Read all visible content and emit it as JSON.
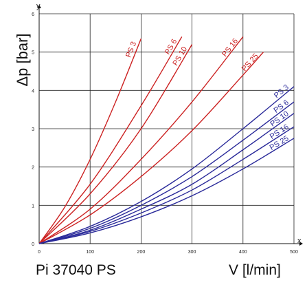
{
  "chart_data": {
    "type": "line",
    "ylabel": "Δp [bar]",
    "xlabel": "V [l/min]",
    "x_axis_letter": "x",
    "y_axis_letter": "y",
    "caption": "Pi 37040 PS",
    "xlim": [
      0,
      500
    ],
    "ylim": [
      0,
      6
    ],
    "x_ticks": [
      "0",
      "100",
      "200",
      "300",
      "400",
      "500"
    ],
    "y_ticks": [
      "0",
      "1",
      "2",
      "3",
      "4",
      "5",
      "6"
    ],
    "grid": true,
    "series_groups": [
      {
        "color": "#cc2222",
        "series": [
          {
            "name": "PS 3",
            "x": [
              0,
              50,
              100,
              150,
              200
            ],
            "y": [
              0,
              0.95,
              2.2,
              3.7,
              5.35
            ]
          },
          {
            "name": "PS 6",
            "x": [
              0,
              100,
              200,
              280
            ],
            "y": [
              0,
              1.55,
              3.6,
              5.4
            ]
          },
          {
            "name": "PS 10",
            "x": [
              0,
              100,
              200,
              300
            ],
            "y": [
              0,
              1.3,
              3.0,
              5.2
            ]
          },
          {
            "name": "PS 16",
            "x": [
              0,
              100,
              200,
              300,
              400
            ],
            "y": [
              0,
              0.9,
              2.2,
              3.7,
              5.4
            ]
          },
          {
            "name": "PS 25",
            "x": [
              0,
              100,
              200,
              300,
              400,
              440
            ],
            "y": [
              0,
              0.75,
              1.75,
              2.95,
              4.4,
              5.0
            ]
          }
        ]
      },
      {
        "color": "#2a2a9a",
        "series": [
          {
            "name": "PS 3",
            "x": [
              0,
              100,
              200,
              300,
              400,
              500
            ],
            "y": [
              0,
              0.45,
              1.1,
              1.95,
              3.0,
              4.1
            ]
          },
          {
            "name": "PS 6",
            "x": [
              0,
              100,
              200,
              300,
              400,
              500
            ],
            "y": [
              0,
              0.4,
              1.0,
              1.75,
              2.7,
              3.7
            ]
          },
          {
            "name": "PS 10",
            "x": [
              0,
              100,
              200,
              300,
              400,
              500
            ],
            "y": [
              0,
              0.35,
              0.9,
              1.55,
              2.45,
              3.4
            ]
          },
          {
            "name": "PS 16",
            "x": [
              0,
              100,
              200,
              300,
              400,
              500
            ],
            "y": [
              0,
              0.32,
              0.8,
              1.4,
              2.2,
              3.05
            ]
          },
          {
            "name": "PS 25",
            "x": [
              0,
              100,
              200,
              300,
              400,
              500
            ],
            "y": [
              0,
              0.28,
              0.7,
              1.25,
              1.95,
              2.75
            ]
          }
        ]
      }
    ]
  }
}
